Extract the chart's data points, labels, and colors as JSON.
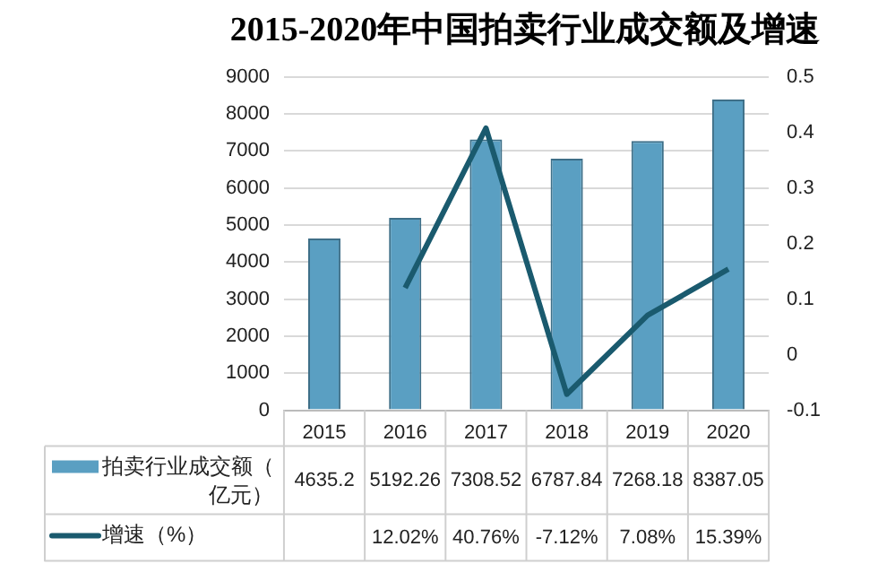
{
  "chart_data": {
    "type": "bar",
    "title": "2015-2020年中国拍卖行业成交额及增速",
    "categories": [
      "2015",
      "2016",
      "2017",
      "2018",
      "2019",
      "2020"
    ],
    "series": [
      {
        "name": "拍卖行业成交额（亿元）",
        "color": "#5a9fc2",
        "values": [
          4635.2,
          5192.26,
          7308.52,
          6787.84,
          7268.18,
          8387.05
        ],
        "value_labels": [
          "4635.2",
          "5192.26",
          "7308.52",
          "6787.84",
          "7268.18",
          "8387.05"
        ]
      },
      {
        "name": "增速（%）",
        "type": "line",
        "axis": "y2",
        "color": "#1a5a6e",
        "values": [
          null,
          0.1202,
          0.4076,
          -0.0712,
          0.0708,
          0.1539
        ],
        "value_labels": [
          null,
          "12.02%",
          "40.76%",
          "-7.12%",
          "7.08%",
          "15.39%"
        ]
      }
    ],
    "ylim": [
      0,
      9000
    ],
    "yticks": [
      0,
      1000,
      2000,
      3000,
      4000,
      5000,
      6000,
      7000,
      8000,
      9000
    ],
    "y2lim": [
      -0.1,
      0.5
    ],
    "y2ticks": [
      -0.1,
      0,
      0.1,
      0.2,
      0.3,
      0.4,
      0.5
    ],
    "grid": "y",
    "legend": "bottom",
    "marker": "none",
    "line_style": "solid"
  }
}
